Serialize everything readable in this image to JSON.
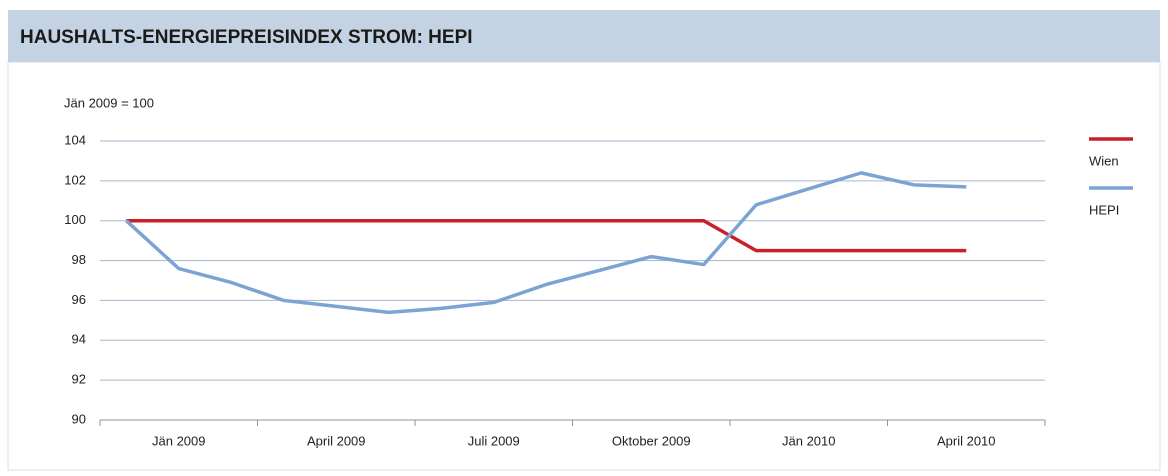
{
  "header": {
    "title": "HAUSHALTS-ENERGIEPREISINDEX STROM: HEPI"
  },
  "chart_data": {
    "type": "line",
    "y_label": "Jän 2009 = 100",
    "categories": [
      null,
      "Jän 2009",
      null,
      null,
      "April 2009",
      null,
      null,
      "Juli 2009",
      null,
      null,
      "Oktober 2009",
      null,
      null,
      "Jän 2010",
      null,
      null,
      "April 2010"
    ],
    "series": [
      {
        "name": "Wien",
        "color": "#c8202b",
        "values": [
          100,
          100,
          100,
          100,
          100,
          100,
          100,
          100,
          100,
          100,
          100,
          100,
          98.5,
          98.5,
          98.5,
          98.5,
          98.5
        ]
      },
      {
        "name": "HEPI",
        "color": "#7ba4d2",
        "values": [
          100,
          97.6,
          96.9,
          96.0,
          95.7,
          95.4,
          95.6,
          95.9,
          96.8,
          97.5,
          98.2,
          97.8,
          100.8,
          101.6,
          102.4,
          101.8,
          101.7
        ]
      }
    ],
    "ylim": [
      90,
      104
    ],
    "yticks": [
      90,
      92,
      94,
      96,
      98,
      100,
      102,
      104
    ],
    "grid": true,
    "legend": "right"
  }
}
